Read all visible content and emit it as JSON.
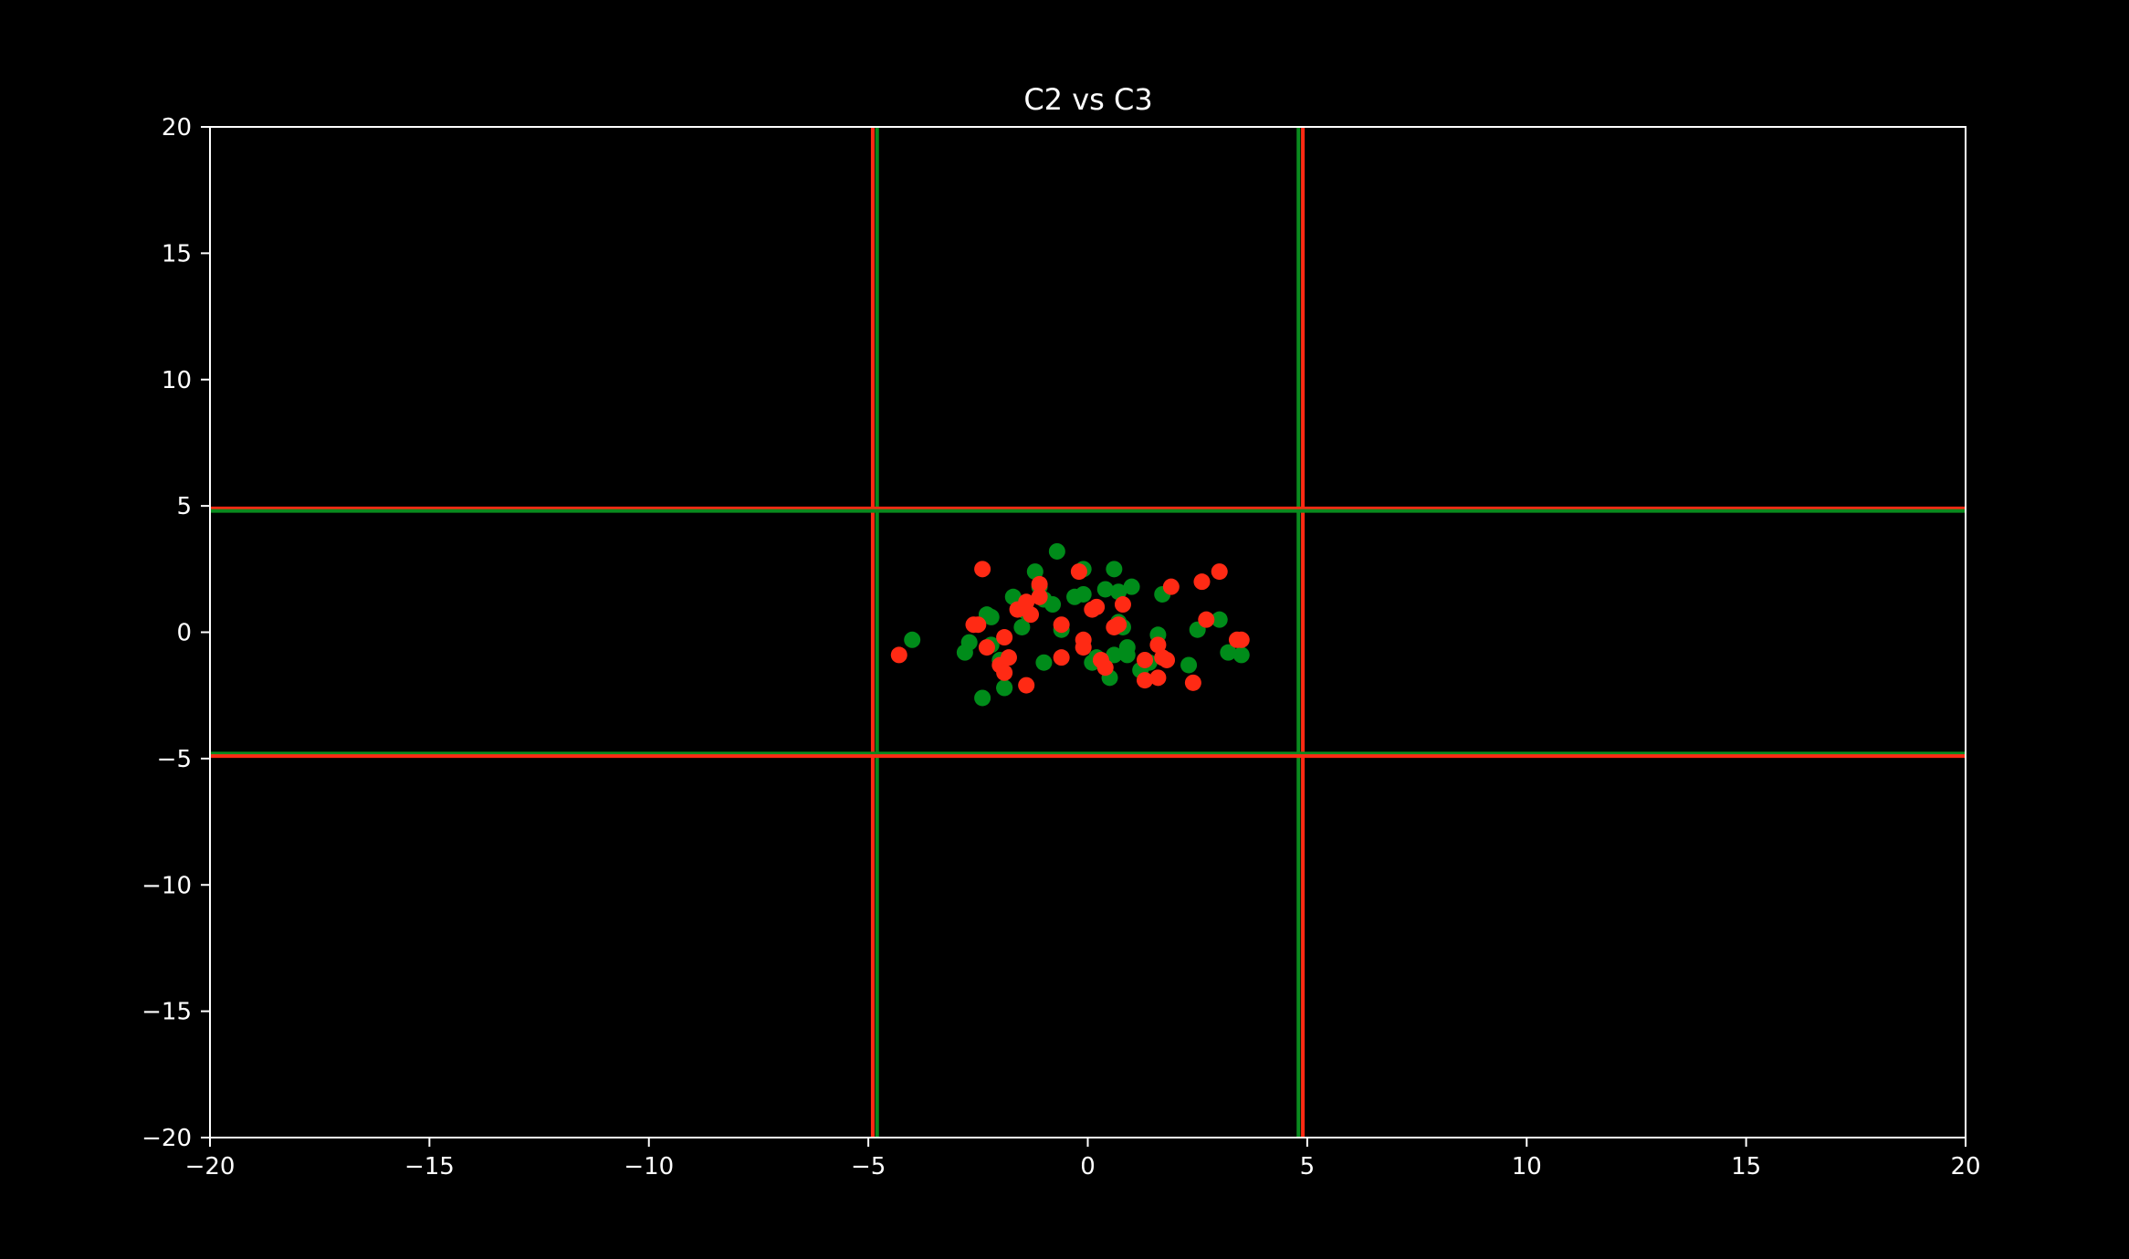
{
  "chart_data": {
    "type": "scatter",
    "title": "C2 vs C3",
    "xlabel": "",
    "ylabel": "",
    "xlim": [
      -20,
      20
    ],
    "ylim": [
      -20,
      20
    ],
    "x_ticks": [
      -20,
      -15,
      -10,
      -5,
      0,
      5,
      10,
      15,
      20
    ],
    "y_ticks": [
      -20,
      -15,
      -10,
      -5,
      0,
      5,
      10,
      15,
      20
    ],
    "x_tick_labels": [
      "−20",
      "−15",
      "−10",
      "−5",
      "0",
      "5",
      "10",
      "15",
      "20"
    ],
    "y_tick_labels": [
      "−20",
      "−15",
      "−10",
      "−5",
      "0",
      "5",
      "10",
      "15",
      "20"
    ],
    "grid": false,
    "background": "#000000",
    "text_color": "#ffffff",
    "reference_lines": [
      {
        "orientation": "vertical",
        "value": -4.9,
        "color": "#ff2a14"
      },
      {
        "orientation": "vertical",
        "value": -4.8,
        "color": "#0a8a1e"
      },
      {
        "orientation": "vertical",
        "value": 4.8,
        "color": "#0a8a1e"
      },
      {
        "orientation": "vertical",
        "value": 4.9,
        "color": "#ff2a14"
      },
      {
        "orientation": "horizontal",
        "value": 4.9,
        "color": "#ff2a14"
      },
      {
        "orientation": "horizontal",
        "value": 4.8,
        "color": "#0a8a1e"
      },
      {
        "orientation": "horizontal",
        "value": -4.8,
        "color": "#0a8a1e"
      },
      {
        "orientation": "horizontal",
        "value": -4.9,
        "color": "#ff2a14"
      }
    ],
    "series": [
      {
        "color": "#008c1a",
        "points": [
          [
            -4.0,
            -0.3
          ],
          [
            -2.8,
            -0.8
          ],
          [
            -2.7,
            -0.4
          ],
          [
            -2.4,
            -2.6
          ],
          [
            -2.3,
            0.7
          ],
          [
            -2.2,
            0.6
          ],
          [
            -2.2,
            -0.5
          ],
          [
            -2.0,
            -1.1
          ],
          [
            -1.9,
            -2.2
          ],
          [
            -1.9,
            -2.2
          ],
          [
            -1.7,
            1.4
          ],
          [
            -1.5,
            0.2
          ],
          [
            -1.4,
            0.8
          ],
          [
            -1.2,
            2.4
          ],
          [
            -1.1,
            1.8
          ],
          [
            -1.0,
            1.3
          ],
          [
            -1.0,
            -1.2
          ],
          [
            -0.8,
            1.1
          ],
          [
            -0.7,
            3.2
          ],
          [
            -0.6,
            0.1
          ],
          [
            -0.3,
            1.4
          ],
          [
            -0.1,
            2.5
          ],
          [
            -0.1,
            1.5
          ],
          [
            0.1,
            -1.2
          ],
          [
            0.2,
            -1.0
          ],
          [
            0.4,
            1.7
          ],
          [
            0.5,
            -1.8
          ],
          [
            0.6,
            2.5
          ],
          [
            0.6,
            -0.9
          ],
          [
            0.7,
            1.6
          ],
          [
            0.7,
            0.4
          ],
          [
            0.8,
            0.2
          ],
          [
            0.9,
            -0.9
          ],
          [
            0.9,
            -0.6
          ],
          [
            1.0,
            1.8
          ],
          [
            1.2,
            -1.5
          ],
          [
            1.4,
            -1.2
          ],
          [
            1.6,
            -0.1
          ],
          [
            1.7,
            1.5
          ],
          [
            2.3,
            -1.3
          ],
          [
            2.5,
            0.1
          ],
          [
            3.0,
            0.5
          ],
          [
            3.2,
            -0.8
          ],
          [
            3.5,
            -0.9
          ]
        ]
      },
      {
        "color": "#ff2a14",
        "points": [
          [
            -4.3,
            -0.9
          ],
          [
            -2.6,
            0.3
          ],
          [
            -2.5,
            0.3
          ],
          [
            -2.4,
            2.5
          ],
          [
            -2.3,
            -0.6
          ],
          [
            -2.0,
            -1.3
          ],
          [
            -1.9,
            -1.6
          ],
          [
            -1.9,
            -0.2
          ],
          [
            -1.8,
            -1.0
          ],
          [
            -1.6,
            0.9
          ],
          [
            -1.4,
            -2.1
          ],
          [
            -1.4,
            1.2
          ],
          [
            -1.3,
            0.7
          ],
          [
            -1.1,
            1.9
          ],
          [
            -1.1,
            1.4
          ],
          [
            -0.6,
            -1.0
          ],
          [
            -0.6,
            0.3
          ],
          [
            -0.2,
            2.4
          ],
          [
            -0.1,
            -0.3
          ],
          [
            -0.1,
            -0.6
          ],
          [
            0.1,
            0.9
          ],
          [
            0.2,
            1.0
          ],
          [
            0.3,
            -1.1
          ],
          [
            0.4,
            -1.4
          ],
          [
            0.6,
            0.2
          ],
          [
            0.7,
            0.3
          ],
          [
            0.8,
            1.1
          ],
          [
            1.3,
            -1.1
          ],
          [
            1.3,
            -1.9
          ],
          [
            1.6,
            -1.8
          ],
          [
            1.6,
            -0.5
          ],
          [
            1.7,
            -1.0
          ],
          [
            1.8,
            -1.1
          ],
          [
            1.9,
            1.8
          ],
          [
            2.4,
            -2.0
          ],
          [
            2.6,
            2.0
          ],
          [
            2.7,
            0.5
          ],
          [
            3.0,
            2.4
          ],
          [
            3.4,
            -0.3
          ],
          [
            3.5,
            -0.3
          ]
        ]
      }
    ]
  }
}
